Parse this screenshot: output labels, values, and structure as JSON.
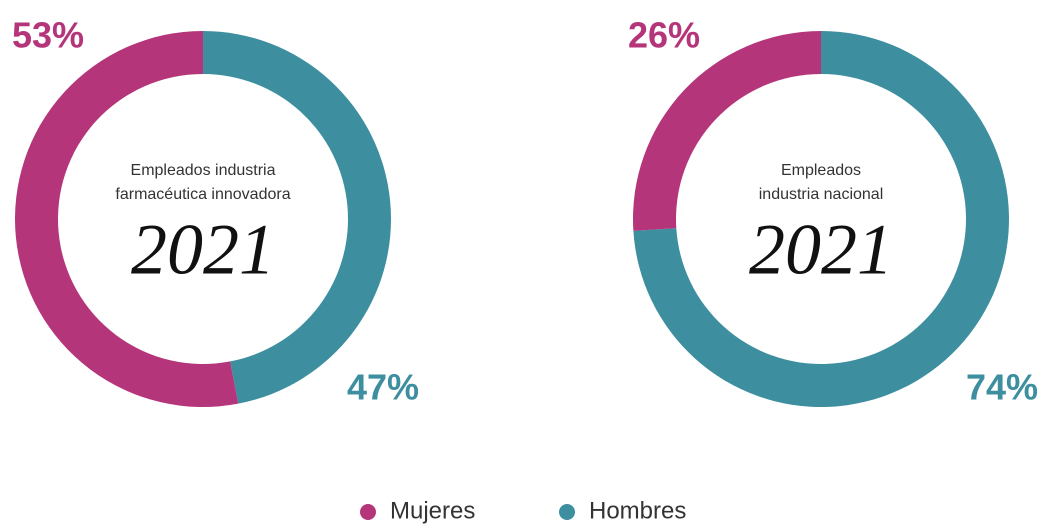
{
  "chart_data": [
    {
      "type": "donut",
      "center_text": [
        "Empleados industria",
        "farmacéutica innovadora"
      ],
      "year": "2021",
      "categories": [
        "Mujeres",
        "Hombres"
      ],
      "values": [
        53,
        47
      ],
      "value_labels": [
        "53%",
        "47%"
      ],
      "colors": [
        "#b5357a",
        "#3d8fa0"
      ]
    },
    {
      "type": "donut",
      "center_text": [
        "Empleados",
        "industria nacional"
      ],
      "year": "2021",
      "categories": [
        "Mujeres",
        "Hombres"
      ],
      "values": [
        26,
        74
      ],
      "value_labels": [
        "26%",
        "74%"
      ],
      "colors": [
        "#b5357a",
        "#3d8fa0"
      ]
    }
  ]
}
